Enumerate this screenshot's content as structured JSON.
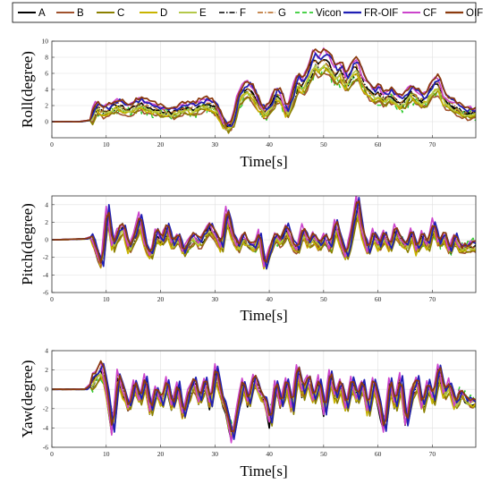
{
  "legend": {
    "entries": [
      {
        "label": "A",
        "color": "#000000",
        "dash": "solid",
        "width": 2
      },
      {
        "label": "B",
        "color": "#a0522d",
        "dash": "solid",
        "width": 2
      },
      {
        "label": "C",
        "color": "#8b8000",
        "dash": "solid",
        "width": 2
      },
      {
        "label": "D",
        "color": "#c8b400",
        "dash": "solid",
        "width": 2
      },
      {
        "label": "E",
        "color": "#b4c84a",
        "dash": "solid",
        "width": 2
      },
      {
        "label": "F",
        "color": "#000000",
        "dash": "dashdot",
        "width": 1.6
      },
      {
        "label": "G",
        "color": "#b5651d",
        "dash": "dashdot",
        "width": 1.6
      },
      {
        "label": "Vicon",
        "color": "#33cc33",
        "dash": "dashed",
        "width": 1.8
      },
      {
        "label": "FR-OIF",
        "color": "#1f1fb4",
        "dash": "solid",
        "width": 2.2
      },
      {
        "label": "CF",
        "color": "#cc44cc",
        "dash": "solid",
        "width": 2
      },
      {
        "label": "OIF",
        "color": "#8b3a0e",
        "dash": "solid",
        "width": 2.2
      }
    ]
  },
  "chart_data": [
    {
      "type": "line",
      "xlabel": "Time[s]",
      "ylabel": "Roll(degree)",
      "xlim": [
        0,
        78
      ],
      "ylim": [
        -2,
        10
      ],
      "xticks": [
        0,
        10,
        20,
        30,
        40,
        50,
        60,
        70
      ],
      "yticks": [
        0,
        2,
        4,
        6,
        8,
        10
      ],
      "grid": true,
      "reference": {
        "x": [
          0,
          5,
          7,
          8,
          9,
          10,
          12,
          14,
          16,
          18,
          20,
          22,
          24,
          26,
          28,
          30,
          31,
          32,
          33,
          34,
          35,
          36,
          37,
          38,
          39,
          40,
          41,
          42,
          43,
          44,
          45,
          46,
          47,
          48,
          49,
          50,
          51,
          52,
          53,
          54,
          55,
          56,
          57,
          58,
          59,
          60,
          61,
          62,
          63,
          64,
          65,
          66,
          67,
          68,
          69,
          70,
          71,
          72,
          73,
          74,
          75,
          76,
          78
        ],
        "y": [
          0,
          0,
          0.2,
          1.8,
          1.2,
          1.3,
          2.0,
          1.4,
          2.1,
          1.6,
          1.2,
          1.0,
          1.6,
          1.5,
          2.2,
          1.6,
          0.2,
          -0.9,
          -0.3,
          2.5,
          3.6,
          4.0,
          3.1,
          1.8,
          0.9,
          1.8,
          3.2,
          2.8,
          0.8,
          2.6,
          4.8,
          4.2,
          5.6,
          7.3,
          6.8,
          7.5,
          6.8,
          5.6,
          6.2,
          4.4,
          6.0,
          6.6,
          4.8,
          3.9,
          3.2,
          3.5,
          2.6,
          3.2,
          2.7,
          2.1,
          2.8,
          3.6,
          3.0,
          2.4,
          3.1,
          4.2,
          4.5,
          2.6,
          2.1,
          1.7,
          1.3,
          1.0,
          1.1
        ]
      },
      "series": [
        {
          "name": "A",
          "values": []
        },
        {
          "name": "B",
          "values": []
        },
        {
          "name": "C",
          "values": []
        },
        {
          "name": "D",
          "values": []
        },
        {
          "name": "E",
          "values": []
        },
        {
          "name": "F",
          "values": []
        },
        {
          "name": "G",
          "values": []
        },
        {
          "name": "Vicon",
          "values": []
        },
        {
          "name": "FR-OIF",
          "values": []
        },
        {
          "name": "CF",
          "values": []
        },
        {
          "name": "OIF",
          "values": []
        }
      ]
    },
    {
      "type": "line",
      "xlabel": "Time[s]",
      "ylabel": "Pitch(degree)",
      "xlim": [
        0,
        78
      ],
      "ylim": [
        -6,
        5
      ],
      "xticks": [
        0,
        10,
        20,
        30,
        40,
        50,
        60,
        70
      ],
      "yticks": [
        -6,
        -4,
        -2,
        0,
        2,
        4
      ],
      "grid": true,
      "reference": {
        "x": [
          0,
          6,
          7,
          8,
          9,
          10,
          11,
          12,
          13,
          14,
          15,
          16,
          17,
          18,
          19,
          20,
          21,
          22,
          23,
          24,
          25,
          26,
          27,
          28,
          29,
          30,
          31,
          32,
          33,
          34,
          35,
          36,
          37,
          38,
          39,
          40,
          41,
          42,
          43,
          44,
          45,
          46,
          47,
          48,
          49,
          50,
          51,
          52,
          53,
          54,
          55,
          56,
          57,
          58,
          59,
          60,
          61,
          62,
          63,
          64,
          65,
          66,
          67,
          68,
          69,
          70,
          71,
          72,
          73,
          74,
          75,
          76,
          77,
          78
        ],
        "y": [
          0,
          0.1,
          0.3,
          -1.4,
          -3.0,
          3.2,
          -0.9,
          0.6,
          1.4,
          -1.2,
          0.2,
          2.2,
          -0.8,
          -2.0,
          0.6,
          -0.4,
          1.2,
          -0.8,
          0.2,
          -1.6,
          -0.4,
          0.2,
          -0.6,
          0.6,
          1.2,
          0.2,
          -1.0,
          2.8,
          0.5,
          -1.2,
          0.3,
          -0.6,
          -1.0,
          0.5,
          -3.2,
          -1.2,
          0.4,
          -0.4,
          1.2,
          -0.5,
          -1.3,
          1.0,
          -0.6,
          0.3,
          -0.8,
          0.2,
          -1.1,
          1.6,
          -0.4,
          -2.2,
          0.8,
          4.0,
          0.4,
          -1.5,
          0.6,
          -0.9,
          0.4,
          -1.2,
          1.0,
          -0.3,
          -1.0,
          0.7,
          -1.4,
          0.3,
          -0.8,
          1.6,
          -0.6,
          0.4,
          -1.5,
          0.2,
          -1.2,
          -1.0,
          -0.8,
          -0.8
        ]
      },
      "series": [
        {
          "name": "A",
          "values": []
        },
        {
          "name": "B",
          "values": []
        },
        {
          "name": "C",
          "values": []
        },
        {
          "name": "D",
          "values": []
        },
        {
          "name": "E",
          "values": []
        },
        {
          "name": "F",
          "values": []
        },
        {
          "name": "G",
          "values": []
        },
        {
          "name": "Vicon",
          "values": []
        },
        {
          "name": "FR-OIF",
          "values": []
        },
        {
          "name": "CF",
          "values": []
        },
        {
          "name": "OIF",
          "values": []
        }
      ]
    },
    {
      "type": "line",
      "xlabel": "Time[s]",
      "ylabel": "Yaw(degree)",
      "xlim": [
        0,
        78
      ],
      "ylim": [
        -6,
        4
      ],
      "xticks": [
        0,
        10,
        20,
        30,
        40,
        50,
        60,
        70
      ],
      "yticks": [
        -6,
        -4,
        -2,
        0,
        2,
        4
      ],
      "grid": true,
      "reference": {
        "x": [
          0,
          6,
          7,
          8,
          9,
          10,
          11,
          12,
          13,
          14,
          15,
          16,
          17,
          18,
          19,
          20,
          21,
          22,
          23,
          24,
          25,
          26,
          27,
          28,
          29,
          30,
          31,
          32,
          33,
          34,
          35,
          36,
          37,
          38,
          39,
          40,
          41,
          42,
          43,
          44,
          45,
          46,
          47,
          48,
          49,
          50,
          51,
          52,
          53,
          54,
          55,
          56,
          57,
          58,
          59,
          60,
          61,
          62,
          63,
          64,
          65,
          66,
          67,
          68,
          69,
          70,
          71,
          72,
          73,
          74,
          75,
          76,
          77,
          78
        ],
        "y": [
          0,
          0,
          0.5,
          1.2,
          2.0,
          -0.5,
          -4.5,
          1.3,
          -0.6,
          -2.0,
          0.4,
          -1.2,
          0.8,
          -2.4,
          -0.2,
          -1.6,
          0.6,
          -2.0,
          0.2,
          -2.8,
          -0.6,
          0.6,
          -1.4,
          0.8,
          -1.8,
          1.8,
          -0.8,
          -2.4,
          -5.2,
          -2.0,
          0.6,
          -1.6,
          1.0,
          -0.4,
          -1.2,
          -3.6,
          0.6,
          -1.8,
          0.8,
          -2.2,
          2.0,
          -0.6,
          1.0,
          -1.4,
          0.8,
          -2.6,
          1.4,
          -1.0,
          0.4,
          -2.2,
          0.6,
          -1.2,
          0.5,
          -2.4,
          0.8,
          -1.6,
          -4.2,
          0.5,
          -1.8,
          0.9,
          -3.6,
          -0.6,
          0.8,
          -2.0,
          0.4,
          -1.2,
          1.8,
          -0.6,
          0.4,
          -1.8,
          -0.4,
          -1.2,
          -1.4,
          -1.4
        ]
      },
      "series": [
        {
          "name": "A",
          "values": []
        },
        {
          "name": "B",
          "values": []
        },
        {
          "name": "C",
          "values": []
        },
        {
          "name": "D",
          "values": []
        },
        {
          "name": "E",
          "values": []
        },
        {
          "name": "F",
          "values": []
        },
        {
          "name": "G",
          "values": []
        },
        {
          "name": "Vicon",
          "values": []
        },
        {
          "name": "FR-OIF",
          "values": []
        },
        {
          "name": "CF",
          "values": []
        },
        {
          "name": "OIF",
          "values": []
        }
      ]
    }
  ]
}
